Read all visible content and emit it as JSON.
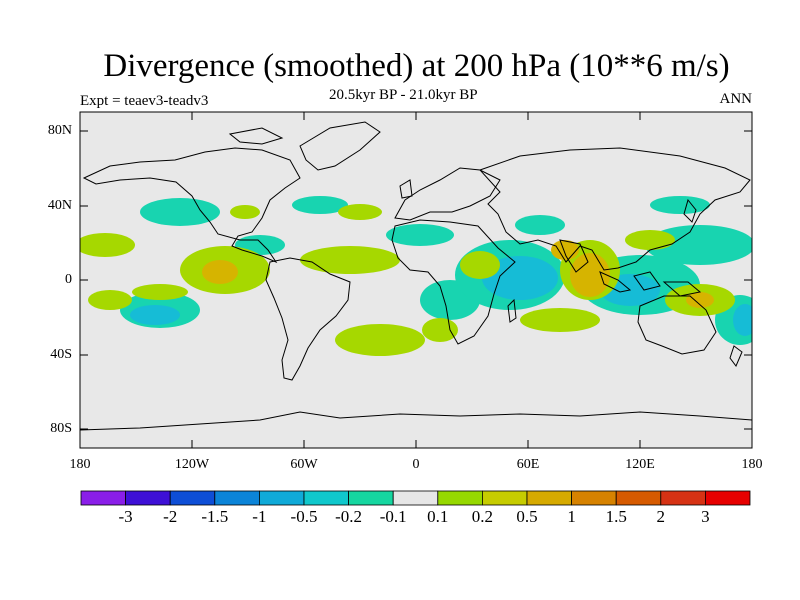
{
  "title": "Divergence (smoothed) at 200 hPa (10**6 m/s)",
  "experiment": "Expt = teaev3-teadv3",
  "period": "20.5kyr BP - 21.0kyr BP",
  "season": "ANN",
  "lat_labels": [
    "80N",
    "40N",
    "0",
    "40S",
    "80S"
  ],
  "lon_labels": [
    "180",
    "120W",
    "60W",
    "0",
    "60E",
    "120E",
    "180"
  ],
  "colorbar": {
    "labels": [
      "-3",
      "-2",
      "-1.5",
      "-1",
      "-0.5",
      "-0.2",
      "-0.1",
      "0.1",
      "0.2",
      "0.5",
      "1",
      "1.5",
      "2",
      "3"
    ],
    "colors": [
      "#8a1ee8",
      "#3e10d6",
      "#0e4ed6",
      "#0b84d8",
      "#10aad8",
      "#10c8cc",
      "#16d6a0",
      "#e6e6e6",
      "#96d800",
      "#c6cc00",
      "#d6aa00",
      "#d68200",
      "#d65a00",
      "#d63214",
      "#e60000"
    ]
  },
  "map": {
    "background": "#e8e8e8",
    "positive_color": "#a6d800",
    "positive_strong": "#d6b400",
    "negative_color": "#18d4b0",
    "negative_strong": "#16bcd6"
  }
}
